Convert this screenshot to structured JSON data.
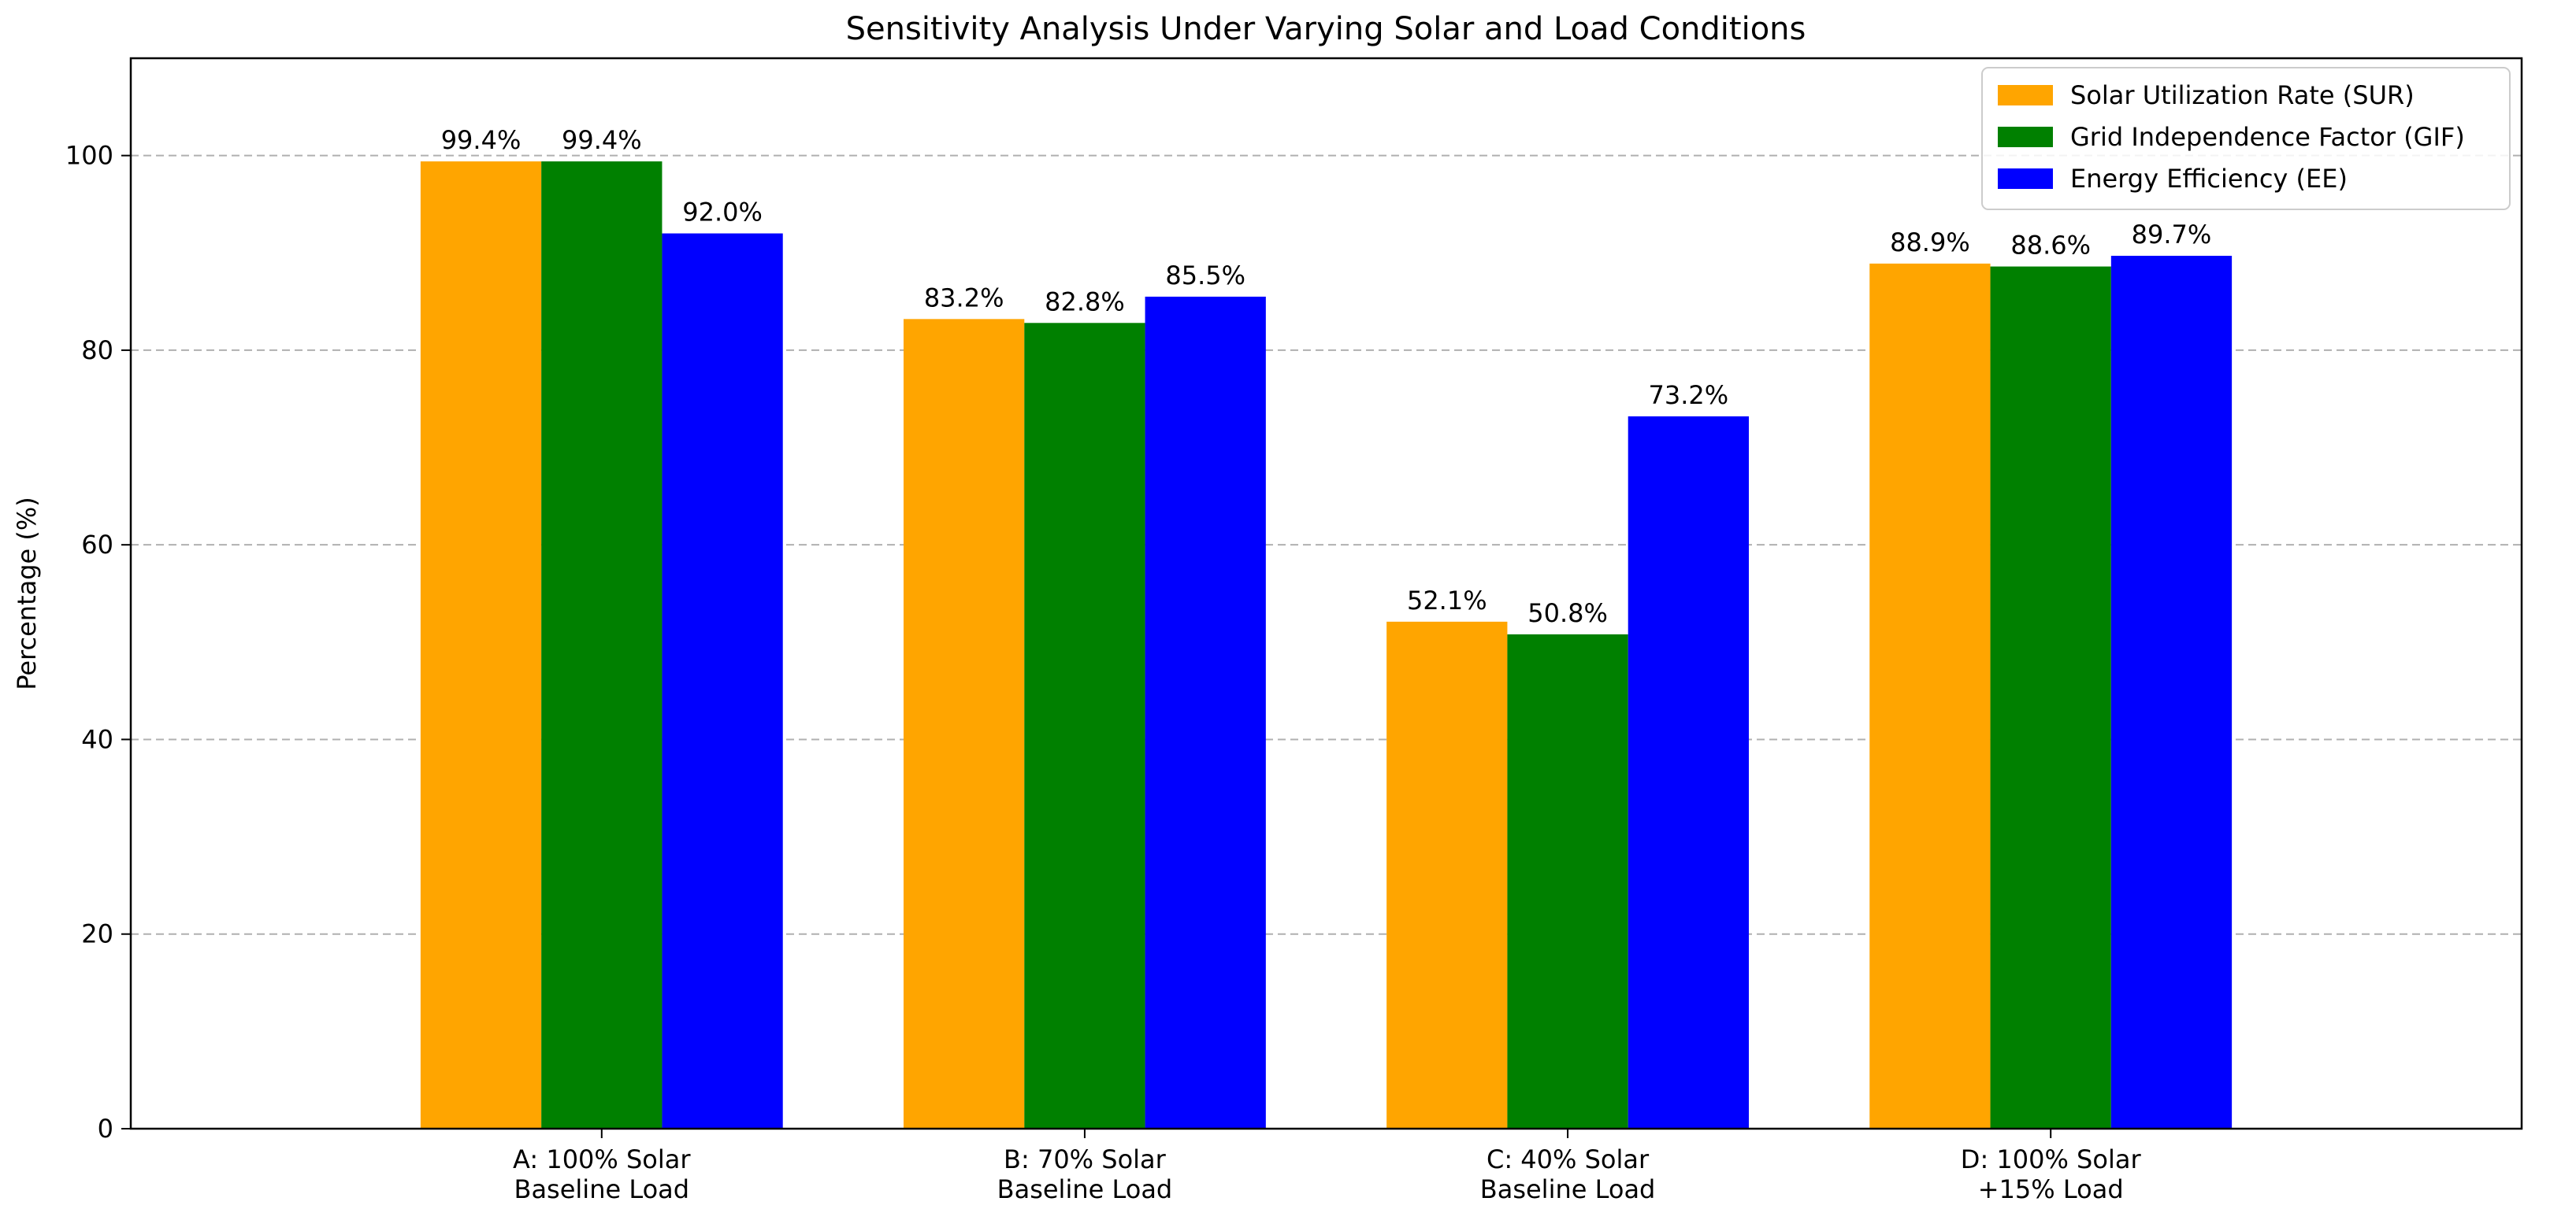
{
  "chart_data": {
    "type": "bar",
    "title": "Sensitivity Analysis Under Varying Solar and Load Conditions",
    "xlabel": "",
    "ylabel": "Percentage (%)",
    "ylim": [
      0,
      110
    ],
    "yticks": [
      0,
      20,
      40,
      60,
      80,
      100
    ],
    "grid": "y-dashed",
    "legend_position": "top-right",
    "categories": [
      [
        "A: 100% Solar",
        "Baseline Load"
      ],
      [
        "B: 70% Solar",
        "Baseline Load"
      ],
      [
        "C: 40% Solar",
        "Baseline Load"
      ],
      [
        "D: 100% Solar",
        "+15% Load"
      ]
    ],
    "series": [
      {
        "name": "Solar Utilization Rate (SUR)",
        "color": "#FFA500",
        "values": [
          99.4,
          83.2,
          52.1,
          88.9
        ]
      },
      {
        "name": "Grid Independence Factor (GIF)",
        "color": "#008000",
        "values": [
          99.4,
          82.8,
          50.8,
          88.6
        ]
      },
      {
        "name": "Energy Efficiency (EE)",
        "color": "#0000FF",
        "values": [
          92.0,
          85.5,
          73.2,
          89.7
        ]
      }
    ]
  }
}
